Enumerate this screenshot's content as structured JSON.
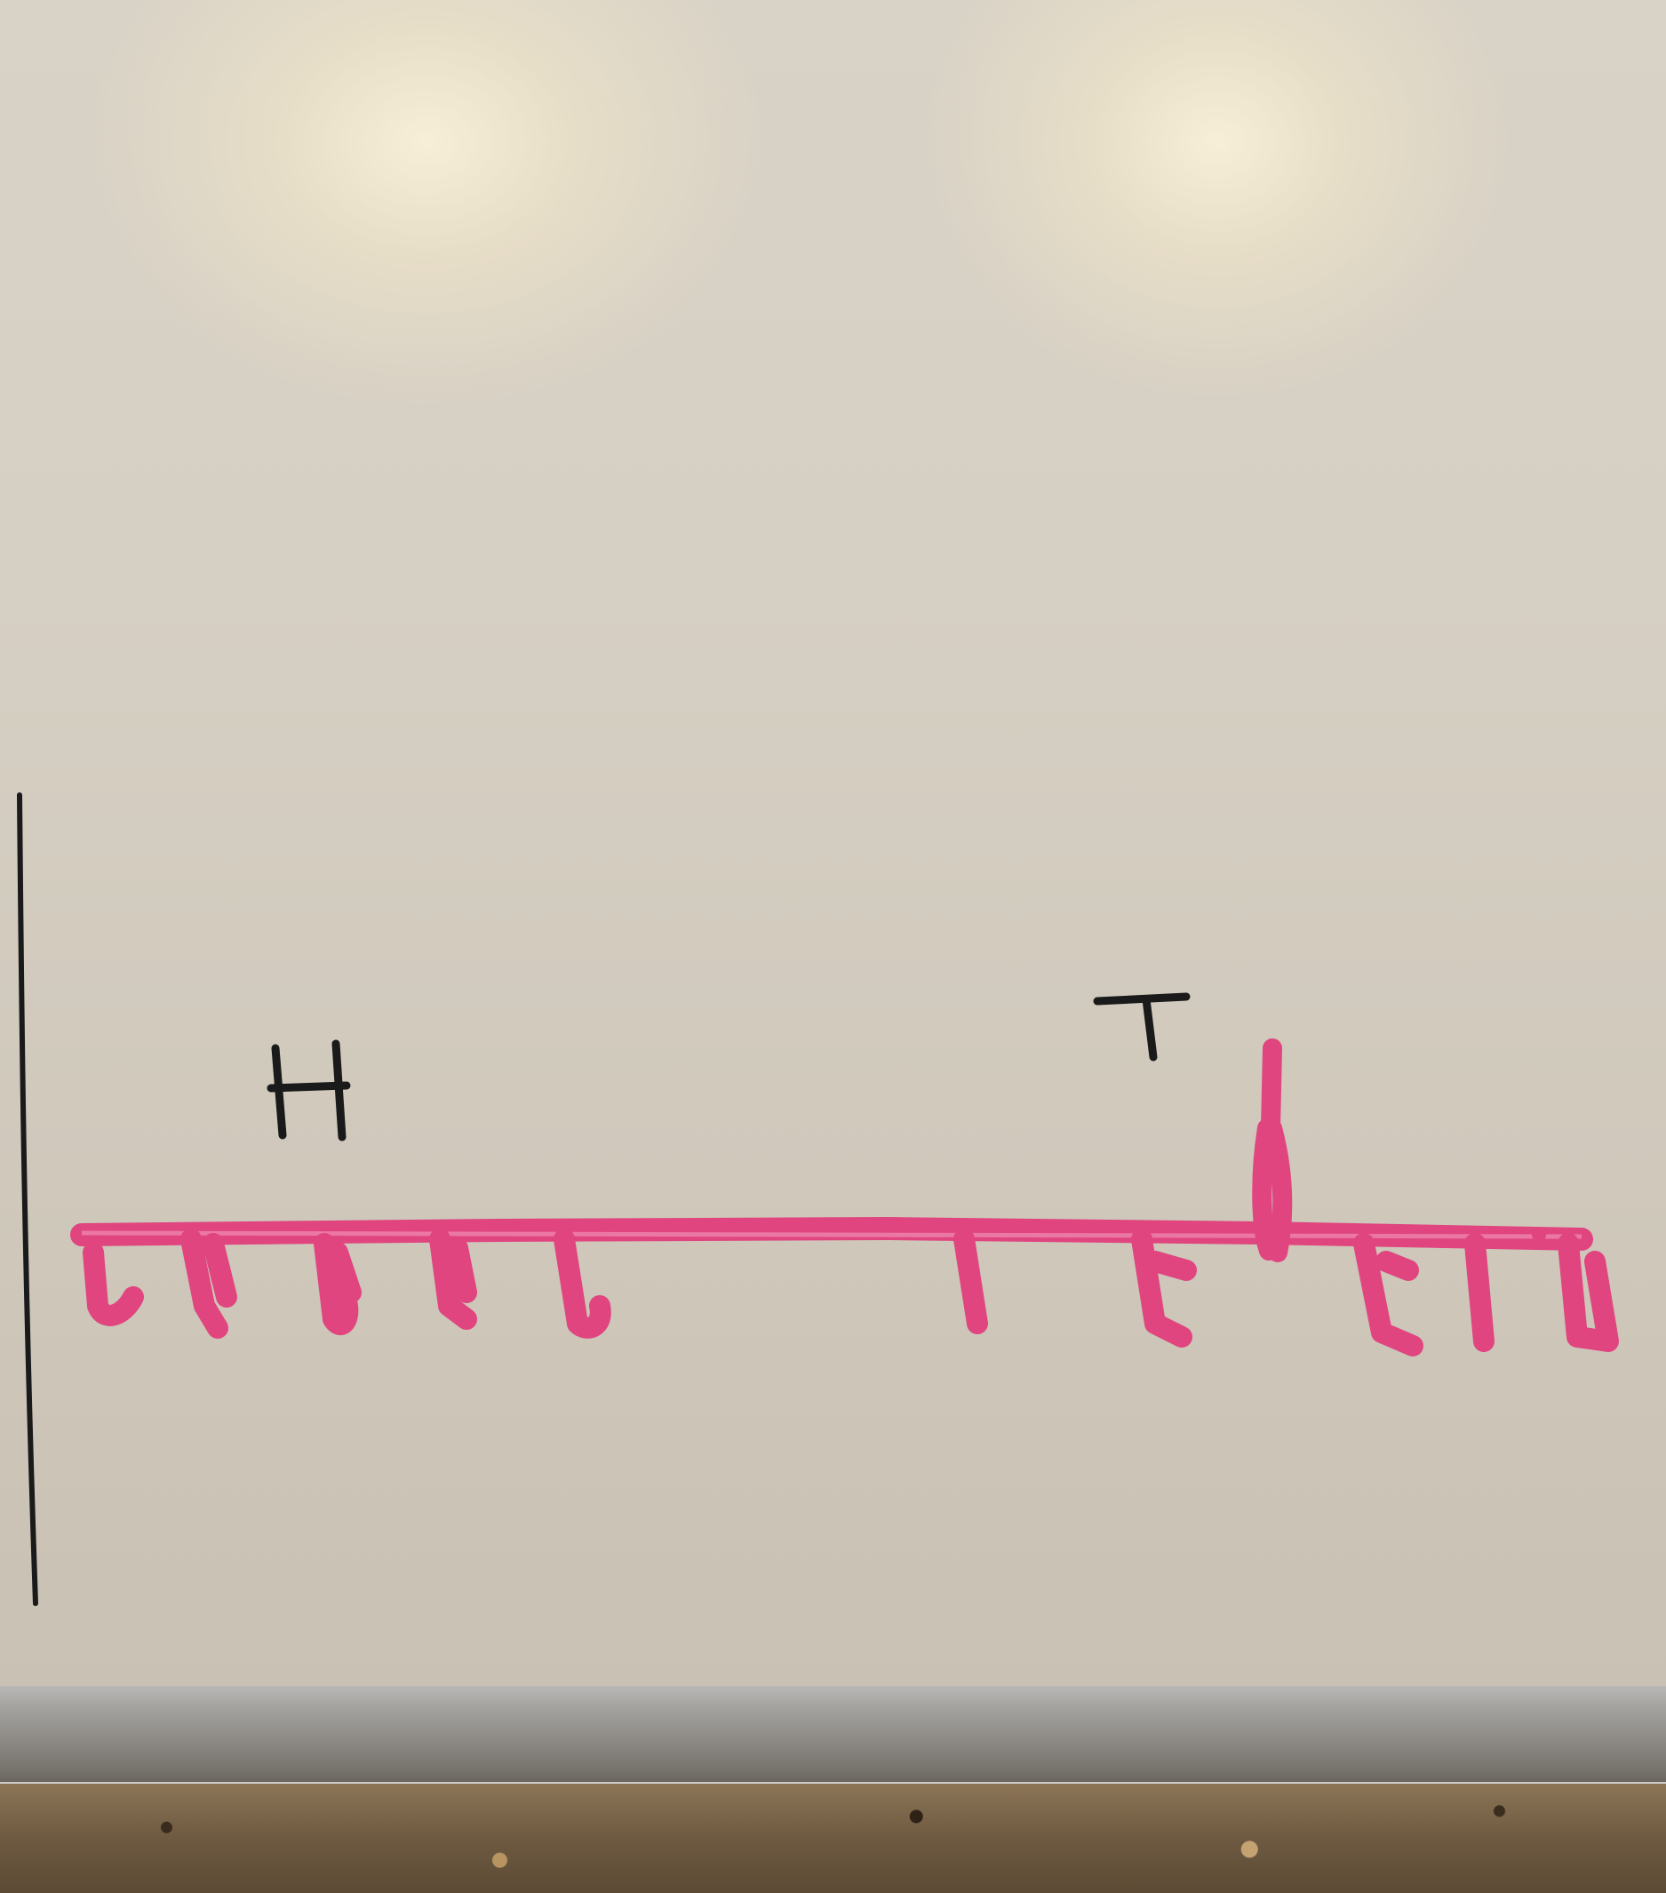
{
  "labels": {
    "h_label": "H",
    "t_label": "T"
  },
  "colors": {
    "board": "#d6cfc3",
    "ink_black": "#1a1a1a",
    "ink_pink": "#e0457f",
    "frame": "#9a9895"
  }
}
